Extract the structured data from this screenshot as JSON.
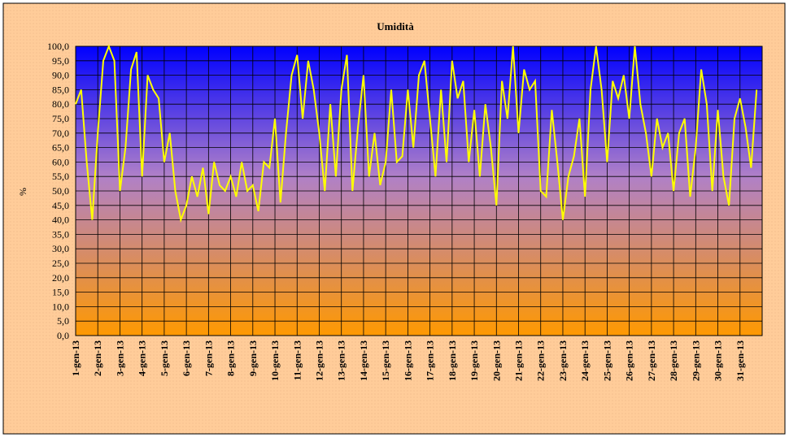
{
  "chart_data": {
    "type": "line",
    "title": "Umidità",
    "y_label": "%",
    "categories": [
      "1-gen-13",
      null,
      null,
      null,
      "2-gen-13",
      null,
      null,
      null,
      "3-gen-13",
      null,
      null,
      null,
      "4-gen-13",
      null,
      null,
      null,
      "5-gen-13",
      null,
      null,
      null,
      "6-gen-13",
      null,
      null,
      null,
      "7-gen-13",
      null,
      null,
      null,
      "8-gen-13",
      null,
      null,
      null,
      "9-gen-13",
      null,
      null,
      null,
      "10-gen-13",
      null,
      null,
      null,
      "11-gen-13",
      null,
      null,
      null,
      "12-gen-13",
      null,
      null,
      null,
      "13-gen-13",
      null,
      null,
      null,
      "14-gen-13",
      null,
      null,
      null,
      "15-gen-13",
      null,
      null,
      null,
      "16-gen-13",
      null,
      null,
      null,
      "17-gen-13",
      null,
      null,
      null,
      "18-gen-13",
      null,
      null,
      null,
      "19-gen-13",
      null,
      null,
      null,
      "20-gen-13",
      null,
      null,
      null,
      "21-gen-13",
      null,
      null,
      null,
      "22-gen-13",
      null,
      null,
      null,
      "23-gen-13",
      null,
      null,
      null,
      "24-gen-13",
      null,
      null,
      null,
      "25-gen-13",
      null,
      null,
      null,
      "26-gen-13",
      null,
      null,
      null,
      "27-gen-13",
      null,
      null,
      null,
      "28-gen-13",
      null,
      null,
      null,
      "29-gen-13",
      null,
      null,
      null,
      "30-gen-13",
      null,
      null,
      null,
      "31-gen-13",
      null,
      null,
      null
    ],
    "series": [
      {
        "name": "Umidità",
        "color": "#ffff00",
        "values": [
          80,
          85,
          60,
          40,
          70,
          95,
          100,
          95,
          50,
          65,
          92,
          98,
          55,
          90,
          85,
          82,
          60,
          70,
          50,
          40,
          45,
          55,
          48,
          58,
          42,
          60,
          52,
          50,
          55,
          48,
          60,
          50,
          52,
          43,
          60,
          58,
          75,
          46,
          70,
          90,
          97,
          75,
          95,
          85,
          70,
          50,
          80,
          55,
          85,
          97,
          50,
          72,
          90,
          55,
          70,
          52,
          60,
          85,
          60,
          62,
          85,
          65,
          90,
          95,
          75,
          55,
          85,
          60,
          95,
          82,
          88,
          60,
          78,
          55,
          80,
          65,
          45,
          88,
          75,
          100,
          70,
          92,
          85,
          88,
          50,
          48,
          78,
          60,
          40,
          55,
          62,
          75,
          48,
          85,
          100,
          85,
          60,
          88,
          82,
          90,
          75,
          100,
          80,
          70,
          55,
          75,
          65,
          70,
          50,
          70,
          75,
          48,
          65,
          92,
          80,
          50,
          78,
          55,
          45,
          75,
          82,
          72,
          58,
          85
        ]
      }
    ],
    "ylim": [
      0,
      100
    ],
    "yticks": [
      {
        "value": 0,
        "label": "0,0"
      },
      {
        "value": 5,
        "label": "5,0"
      },
      {
        "value": 10,
        "label": "10,0"
      },
      {
        "value": 15,
        "label": "15,0"
      },
      {
        "value": 20,
        "label": "20,0"
      },
      {
        "value": 25,
        "label": "25,0"
      },
      {
        "value": 30,
        "label": "30,0"
      },
      {
        "value": 35,
        "label": "35,0"
      },
      {
        "value": 40,
        "label": "40,0"
      },
      {
        "value": 45,
        "label": "45,0"
      },
      {
        "value": 50,
        "label": "50,0"
      },
      {
        "value": 55,
        "label": "55,0"
      },
      {
        "value": 60,
        "label": "60,0"
      },
      {
        "value": 65,
        "label": "65,0"
      },
      {
        "value": 70,
        "label": "70,0"
      },
      {
        "value": 75,
        "label": "75,0"
      },
      {
        "value": 80,
        "label": "80,0"
      },
      {
        "value": 85,
        "label": "85,0"
      },
      {
        "value": 90,
        "label": "90,0"
      },
      {
        "value": 95,
        "label": "95,0"
      },
      {
        "value": 100,
        "label": "100,0"
      }
    ],
    "grid": true
  }
}
